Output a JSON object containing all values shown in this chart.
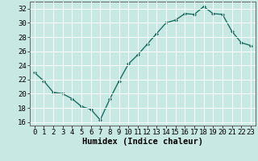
{
  "x": [
    0,
    1,
    2,
    3,
    4,
    5,
    6,
    7,
    8,
    9,
    10,
    11,
    12,
    13,
    14,
    15,
    16,
    17,
    18,
    19,
    20,
    21,
    22,
    23
  ],
  "y": [
    23.0,
    21.8,
    20.2,
    20.0,
    19.3,
    18.2,
    17.8,
    16.3,
    19.2,
    21.8,
    24.2,
    25.5,
    27.0,
    28.5,
    30.0,
    30.4,
    31.3,
    31.2,
    32.3,
    31.3,
    31.2,
    28.8,
    27.2,
    26.8
  ],
  "bg_color": "#c8e8e4",
  "line_color": "#1a6e62",
  "marker_color": "#1a6e62",
  "grid_color": "#ffffff",
  "xlabel": "Humidex (Indice chaleur)",
  "ylim": [
    15.5,
    33.0
  ],
  "yticks": [
    16,
    18,
    20,
    22,
    24,
    26,
    28,
    30,
    32
  ],
  "xticks": [
    0,
    1,
    2,
    3,
    4,
    5,
    6,
    7,
    8,
    9,
    10,
    11,
    12,
    13,
    14,
    15,
    16,
    17,
    18,
    19,
    20,
    21,
    22,
    23
  ],
  "xlim": [
    -0.5,
    23.5
  ],
  "tick_fontsize": 6.5,
  "label_fontsize": 7.5
}
